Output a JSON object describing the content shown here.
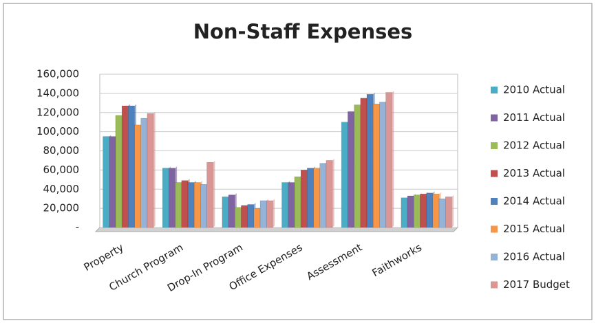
{
  "chart_data": {
    "type": "bar",
    "title": "Non-Staff Expenses",
    "categories": [
      "Property",
      "Church Program",
      "Drop-In Program",
      "Office Expenses",
      "Assessment",
      "Faithworks"
    ],
    "series": [
      {
        "name": "2010 Actual",
        "color": "#4bacc6",
        "values": [
          95000,
          62000,
          32000,
          47000,
          110000,
          31000
        ]
      },
      {
        "name": "2011 Actual",
        "color": "#8064a2",
        "values": [
          95000,
          62000,
          34000,
          47000,
          121000,
          33000
        ]
      },
      {
        "name": "2012 Actual",
        "color": "#9bbb59",
        "values": [
          117000,
          47000,
          21000,
          53000,
          128000,
          34000
        ]
      },
      {
        "name": "2013 Actual",
        "color": "#c0504d",
        "values": [
          127000,
          49000,
          23000,
          60000,
          135000,
          35000
        ]
      },
      {
        "name": "2014 Actual",
        "color": "#4f81bd",
        "values": [
          127000,
          47000,
          24000,
          62000,
          139000,
          36000
        ]
      },
      {
        "name": "2015 Actual",
        "color": "#f79646",
        "values": [
          107000,
          47000,
          20000,
          62000,
          129000,
          35000
        ]
      },
      {
        "name": "2016 Actual",
        "color": "#95b3d7",
        "values": [
          114000,
          45000,
          28000,
          67000,
          131000,
          30000
        ]
      },
      {
        "name": "2017 Budget",
        "color": "#d99694",
        "values": [
          119000,
          68000,
          28000,
          70000,
          141000,
          32000
        ]
      }
    ],
    "ylim": [
      0,
      160000
    ],
    "yticks": [
      {
        "value": 0,
        "label": "-"
      },
      {
        "value": 20000,
        "label": "20,000"
      },
      {
        "value": 40000,
        "label": "40,000"
      },
      {
        "value": 60000,
        "label": "60,000"
      },
      {
        "value": 80000,
        "label": "80,000"
      },
      {
        "value": 100000,
        "label": "100,000"
      },
      {
        "value": 120000,
        "label": "120,000"
      },
      {
        "value": 140000,
        "label": "140,000"
      },
      {
        "value": 160000,
        "label": "160,000"
      }
    ],
    "grid": true,
    "legend": "right"
  }
}
